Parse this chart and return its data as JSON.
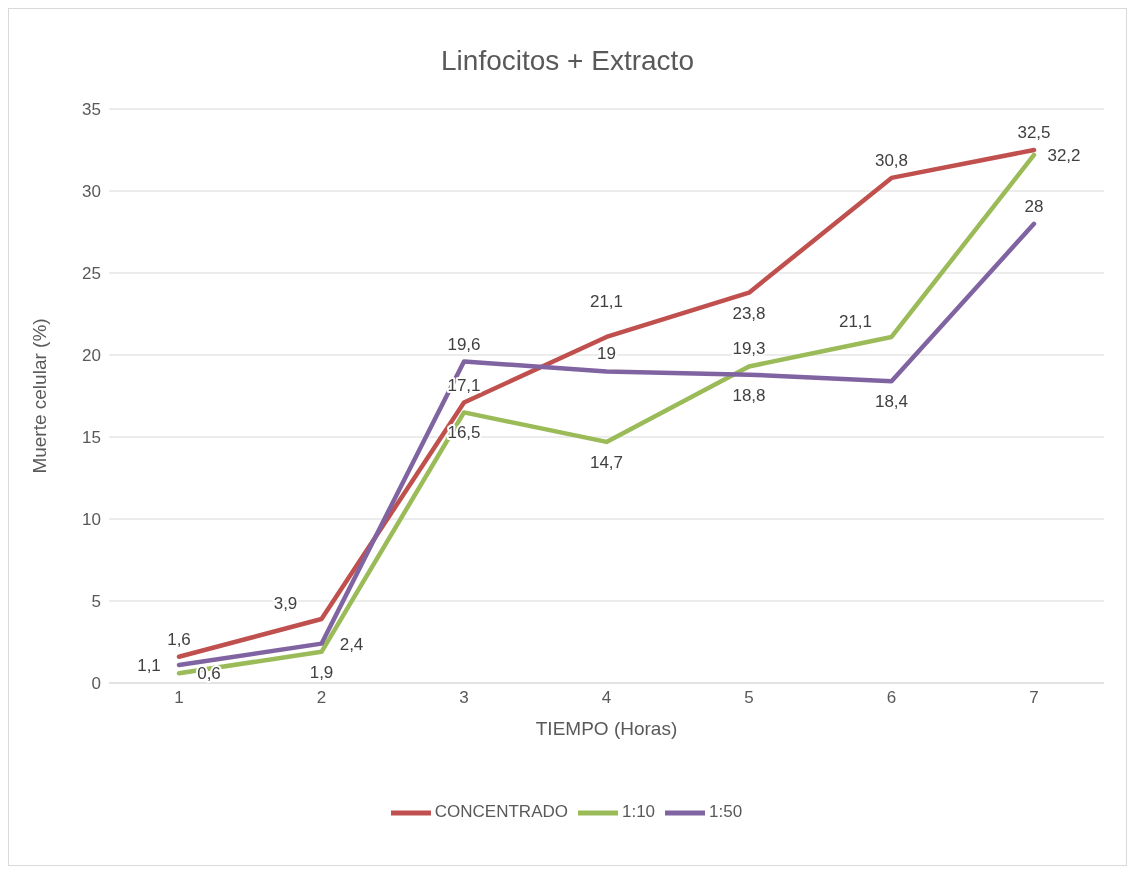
{
  "chart_data": {
    "type": "line",
    "title": "Linfocitos + Extracto",
    "xlabel": "TIEMPO (Horas)",
    "ylabel": "Muerte celular (%)",
    "categories": [
      "1",
      "2",
      "3",
      "4",
      "5",
      "6",
      "7"
    ],
    "series": [
      {
        "name": "CONCENTRADO",
        "color": "#c0504d",
        "values": [
          1.6,
          3.9,
          17.1,
          21.1,
          23.8,
          30.8,
          32.5
        ],
        "value_labels": [
          "1,6",
          "3,9",
          "17,1",
          "21,1",
          "23,8",
          "30,8",
          "32,5"
        ]
      },
      {
        "name": "1:10",
        "color": "#9bbb59",
        "values": [
          0.6,
          1.9,
          16.5,
          14.7,
          19.3,
          21.1,
          32.2
        ],
        "value_labels": [
          "0,6",
          "1,9",
          "16,5",
          "14,7",
          "19,3",
          "21,1",
          "32,2"
        ]
      },
      {
        "name": "1:50",
        "color": "#8064a2",
        "values": [
          1.1,
          2.4,
          19.6,
          19,
          18.8,
          18.4,
          28
        ],
        "value_labels": [
          "1,1",
          "2,4",
          "19,6",
          "19",
          "18,8",
          "18,4",
          "28"
        ]
      }
    ],
    "ylim": [
      0,
      35
    ],
    "yticks": [
      0,
      5,
      10,
      15,
      20,
      25,
      30,
      35
    ],
    "grid": "y",
    "legend": "bottom",
    "marker": "none",
    "line_style": "solid"
  }
}
